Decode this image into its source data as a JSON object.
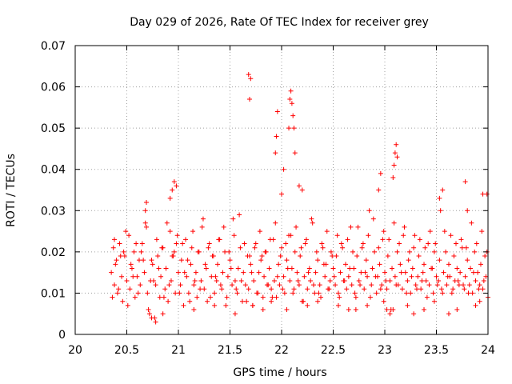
{
  "chart_data": {
    "type": "scatter",
    "title": "Day 029 of 2026, Rate Of TEC Index for receiver grey",
    "xlabel": "GPS time / hours",
    "ylabel": "ROTI / TECUs",
    "xlim": [
      20,
      24
    ],
    "ylim": [
      0,
      0.07
    ],
    "xticks": [
      20,
      20.5,
      21,
      21.5,
      22,
      22.5,
      23,
      23.5,
      24
    ],
    "xtick_labels": [
      "20",
      "20.5",
      "21",
      "21.5",
      "22",
      "22.5",
      "23",
      "23.5",
      "24"
    ],
    "yticks": [
      0,
      0.01,
      0.02,
      0.03,
      0.04,
      0.05,
      0.06,
      0.07
    ],
    "ytick_labels": [
      "0",
      "0.01",
      "0.02",
      "0.03",
      "0.04",
      "0.05",
      "0.06",
      "0.07"
    ],
    "grid": true,
    "marker": "+",
    "series": [
      {
        "name": "ROTI",
        "color": "#ff0000",
        "x": [
          20.35,
          20.37,
          20.38,
          20.4,
          20.41,
          20.43,
          20.45,
          20.46,
          20.48,
          20.5,
          20.52,
          20.53,
          20.55,
          20.57,
          20.58,
          20.6,
          20.62,
          20.63,
          20.65,
          20.67,
          20.68,
          20.7,
          20.72,
          20.73,
          20.75,
          20.77,
          20.78,
          20.8,
          20.82,
          20.83,
          20.85,
          20.87,
          20.88,
          20.9,
          20.92,
          20.93,
          20.95,
          20.97,
          20.98,
          21.0,
          21.02,
          21.03,
          21.05,
          21.07,
          21.08,
          21.1,
          21.12,
          21.13,
          21.15,
          21.17,
          21.18,
          21.2,
          21.22,
          21.23,
          21.25,
          21.27,
          21.28,
          21.3,
          21.32,
          21.33,
          21.35,
          21.37,
          21.38,
          21.4,
          21.42,
          21.43,
          21.45,
          21.47,
          21.48,
          21.5,
          21.52,
          21.53,
          21.55,
          21.57,
          21.58,
          21.6,
          21.62,
          21.63,
          21.65,
          21.67,
          21.68,
          21.7,
          21.72,
          21.73,
          21.75,
          21.77,
          21.78,
          21.8,
          21.82,
          21.83,
          21.85,
          21.87,
          21.88,
          21.9,
          21.92,
          21.93,
          21.95,
          21.97,
          21.98,
          22.0,
          22.02,
          22.03,
          22.05,
          22.07,
          22.08,
          22.1,
          22.12,
          22.13,
          22.15,
          22.17,
          22.18,
          22.2,
          22.22,
          22.23,
          22.25,
          22.27,
          22.28,
          22.3,
          22.32,
          22.33,
          22.35,
          22.37,
          22.38,
          22.4,
          22.42,
          22.43,
          22.45,
          22.47,
          22.48,
          22.5,
          22.52,
          22.53,
          22.55,
          22.57,
          22.58,
          22.6,
          22.62,
          22.63,
          22.65,
          22.67,
          22.68,
          22.7,
          22.72,
          22.73,
          22.75,
          22.77,
          22.78,
          22.8,
          22.82,
          22.83,
          22.85,
          22.87,
          22.88,
          22.9,
          22.92,
          22.93,
          22.95,
          22.97,
          22.98,
          23.0,
          23.02,
          23.03,
          23.05,
          23.07,
          23.08,
          23.1,
          23.12,
          23.13,
          23.15,
          23.17,
          23.18,
          23.2,
          23.22,
          23.23,
          23.25,
          23.27,
          23.28,
          23.3,
          23.32,
          23.33,
          23.35,
          23.37,
          23.38,
          23.4,
          23.42,
          23.43,
          23.45,
          23.47,
          23.48,
          23.5,
          23.52,
          23.53,
          23.55,
          23.57,
          23.58,
          23.6,
          23.62,
          23.63,
          23.65,
          23.67,
          23.68,
          23.7,
          23.72,
          23.73,
          23.75,
          23.77,
          23.78,
          23.8,
          23.82,
          23.83,
          23.85,
          23.87,
          23.88,
          23.9,
          23.92,
          23.93,
          23.95,
          23.97,
          23.98,
          24.0,
          20.36,
          20.39,
          20.42,
          20.47,
          20.51,
          20.56,
          20.61,
          20.66,
          20.71,
          20.76,
          20.81,
          20.86,
          20.91,
          20.96,
          21.01,
          21.06,
          21.11,
          21.16,
          21.21,
          21.26,
          21.31,
          21.36,
          21.41,
          21.46,
          21.51,
          21.56,
          21.61,
          21.66,
          21.71,
          21.76,
          21.81,
          21.86,
          21.91,
          21.96,
          22.01,
          22.06,
          22.11,
          22.16,
          22.21,
          22.26,
          22.31,
          22.36,
          22.41,
          22.46,
          22.51,
          22.56,
          22.61,
          22.66,
          22.71,
          22.76,
          22.81,
          22.86,
          22.91,
          22.96,
          23.01,
          23.06,
          23.11,
          23.16,
          23.21,
          23.26,
          23.31,
          23.36,
          23.41,
          23.46,
          23.51,
          23.56,
          23.61,
          23.66,
          23.71,
          23.76,
          23.81,
          23.86,
          23.91,
          23.96,
          20.38,
          20.44,
          20.49,
          20.54,
          20.59,
          20.64,
          20.69,
          20.74,
          20.79,
          20.84,
          20.89,
          20.94,
          20.99,
          21.04,
          21.09,
          21.14,
          21.19,
          21.24,
          21.29,
          21.34,
          21.39,
          21.44,
          21.49,
          21.54,
          21.59,
          21.64,
          21.69,
          21.74,
          21.79,
          21.84,
          21.89,
          21.94,
          21.99,
          22.04,
          22.09,
          22.14,
          22.19,
          22.24,
          22.29,
          22.34,
          22.39,
          22.44,
          22.49,
          22.54,
          22.59,
          22.64,
          22.69,
          22.74,
          22.79,
          22.84,
          22.89,
          22.94,
          22.99,
          23.04,
          23.09,
          23.14,
          23.19,
          23.24,
          23.29,
          23.34,
          23.39,
          23.44,
          23.49,
          23.54,
          23.59,
          23.64,
          23.69,
          23.74,
          23.79,
          23.84,
          23.89,
          23.94,
          23.99,
          20.68,
          20.69,
          20.92,
          20.94,
          20.96,
          20.98,
          21.69,
          21.7,
          21.68,
          21.94,
          21.95,
          21.96,
          22.0,
          22.02,
          22.07,
          22.08,
          22.09,
          22.1,
          22.11,
          22.12,
          22.13,
          22.17,
          22.2,
          22.94,
          22.96,
          23.08,
          23.09,
          23.1,
          23.11,
          23.12,
          23.53,
          23.56,
          23.78,
          23.8,
          23.95,
          23.99,
          20.74,
          20.78,
          20.85,
          21.15,
          21.35,
          21.55,
          21.72,
          21.82,
          21.9,
          22.05,
          22.25,
          22.35,
          22.55,
          22.65,
          22.72,
          22.83,
          22.99,
          23.02,
          23.05,
          23.22,
          23.28,
          23.38,
          23.48,
          23.62,
          23.7,
          23.88,
          23.92
        ],
        "y": [
          0.015,
          0.021,
          0.012,
          0.018,
          0.01,
          0.022,
          0.014,
          0.008,
          0.019,
          0.013,
          0.024,
          0.011,
          0.016,
          0.02,
          0.009,
          0.014,
          0.018,
          0.012,
          0.022,
          0.015,
          0.027,
          0.01,
          0.005,
          0.013,
          0.017,
          0.004,
          0.012,
          0.019,
          0.009,
          0.014,
          0.021,
          0.011,
          0.016,
          0.008,
          0.025,
          0.013,
          0.019,
          0.01,
          0.022,
          0.015,
          0.012,
          0.018,
          0.007,
          0.023,
          0.014,
          0.01,
          0.017,
          0.021,
          0.012,
          0.015,
          0.009,
          0.02,
          0.013,
          0.026,
          0.011,
          0.016,
          0.008,
          0.022,
          0.014,
          0.019,
          0.01,
          0.013,
          0.017,
          0.023,
          0.011,
          0.015,
          0.02,
          0.009,
          0.014,
          0.018,
          0.012,
          0.028,
          0.013,
          0.01,
          0.016,
          0.021,
          0.008,
          0.015,
          0.012,
          0.019,
          0.011,
          0.017,
          0.007,
          0.013,
          0.022,
          0.01,
          0.015,
          0.018,
          0.009,
          0.014,
          0.02,
          0.012,
          0.016,
          0.011,
          0.023,
          0.013,
          0.009,
          0.017,
          0.012,
          0.021,
          0.014,
          0.01,
          0.018,
          0.024,
          0.013,
          0.016,
          0.011,
          0.02,
          0.015,
          0.012,
          0.019,
          0.008,
          0.014,
          0.022,
          0.011,
          0.016,
          0.013,
          0.027,
          0.01,
          0.015,
          0.018,
          0.012,
          0.009,
          0.021,
          0.014,
          0.017,
          0.011,
          0.013,
          0.02,
          0.016,
          0.012,
          0.019,
          0.01,
          0.015,
          0.022,
          0.013,
          0.017,
          0.011,
          0.014,
          0.026,
          0.012,
          0.016,
          0.009,
          0.019,
          0.013,
          0.015,
          0.021,
          0.011,
          0.018,
          0.014,
          0.03,
          0.012,
          0.016,
          0.02,
          0.01,
          0.014,
          0.017,
          0.012,
          0.023,
          0.015,
          0.011,
          0.019,
          0.013,
          0.016,
          0.006,
          0.014,
          0.02,
          0.012,
          0.017,
          0.011,
          0.024,
          0.015,
          0.013,
          0.018,
          0.01,
          0.016,
          0.021,
          0.012,
          0.014,
          0.019,
          0.011,
          0.015,
          0.017,
          0.013,
          0.022,
          0.012,
          0.016,
          0.01,
          0.02,
          0.014,
          0.013,
          0.018,
          0.011,
          0.015,
          0.025,
          0.012,
          0.017,
          0.014,
          0.01,
          0.019,
          0.013,
          0.016,
          0.012,
          0.015,
          0.021,
          0.011,
          0.014,
          0.018,
          0.012,
          0.016,
          0.01,
          0.02,
          0.013,
          0.015,
          0.012,
          0.017,
          0.011,
          0.019,
          0.014,
          0.009,
          0.009,
          0.017,
          0.011,
          0.02,
          0.007,
          0.014,
          0.01,
          0.018,
          0.006,
          0.013,
          0.016,
          0.009,
          0.012,
          0.02,
          0.01,
          0.015,
          0.008,
          0.013,
          0.011,
          0.017,
          0.009,
          0.014,
          0.012,
          0.007,
          0.016,
          0.011,
          0.013,
          0.008,
          0.015,
          0.01,
          0.019,
          0.012,
          0.009,
          0.014,
          0.011,
          0.016,
          0.01,
          0.013,
          0.008,
          0.015,
          0.012,
          0.01,
          0.017,
          0.011,
          0.014,
          0.009,
          0.013,
          0.016,
          0.01,
          0.012,
          0.015,
          0.009,
          0.014,
          0.011,
          0.013,
          0.006,
          0.012,
          0.015,
          0.01,
          0.014,
          0.011,
          0.013,
          0.009,
          0.016,
          0.012,
          0.01,
          0.014,
          0.011,
          0.013,
          0.012,
          0.01,
          0.015,
          0.011,
          0.013,
          0.023,
          0.019,
          0.025,
          0.017,
          0.022,
          0.02,
          0.026,
          0.018,
          0.023,
          0.021,
          0.027,
          0.019,
          0.024,
          0.022,
          0.018,
          0.025,
          0.02,
          0.028,
          0.021,
          0.019,
          0.023,
          0.026,
          0.02,
          0.024,
          0.029,
          0.022,
          0.019,
          0.021,
          0.025,
          0.02,
          0.023,
          0.027,
          0.019,
          0.022,
          0.024,
          0.026,
          0.021,
          0.023,
          0.028,
          0.02,
          0.022,
          0.025,
          0.019,
          0.024,
          0.021,
          0.023,
          0.02,
          0.026,
          0.022,
          0.024,
          0.028,
          0.021,
          0.025,
          0.023,
          0.027,
          0.022,
          0.026,
          0.02,
          0.024,
          0.023,
          0.021,
          0.025,
          0.022,
          0.03,
          0.02,
          0.024,
          0.022,
          0.023,
          0.021,
          0.027,
          0.022,
          0.025,
          0.02,
          0.03,
          0.032,
          0.033,
          0.035,
          0.037,
          0.036,
          0.057,
          0.062,
          0.063,
          0.044,
          0.048,
          0.054,
          0.034,
          0.04,
          0.05,
          0.057,
          0.059,
          0.056,
          0.053,
          0.05,
          0.044,
          0.036,
          0.035,
          0.035,
          0.039,
          0.038,
          0.041,
          0.044,
          0.046,
          0.043,
          0.033,
          0.035,
          0.037,
          0.03,
          0.034,
          0.034,
          0.004,
          0.003,
          0.005,
          0.006,
          0.007,
          0.005,
          0.007,
          0.006,
          0.008,
          0.006,
          0.007,
          0.008,
          0.007,
          0.006,
          0.006,
          0.007,
          0.008,
          0.006,
          0.005,
          0.007,
          0.005,
          0.006,
          0.008,
          0.005,
          0.006,
          0.007,
          0.008
        ]
      }
    ]
  }
}
